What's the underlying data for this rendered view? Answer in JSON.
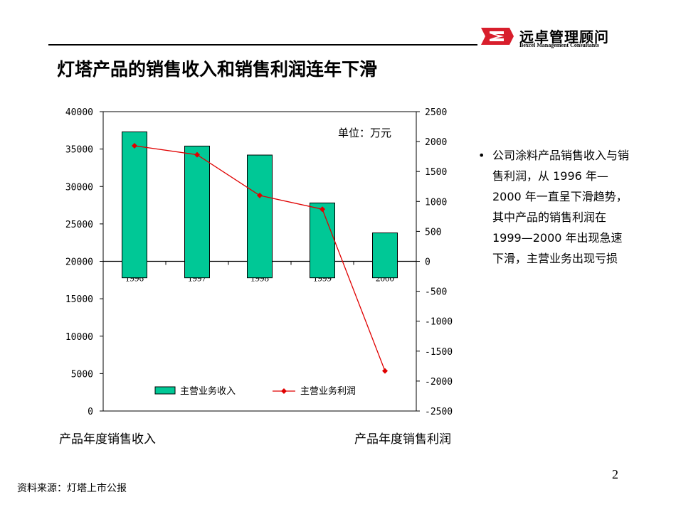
{
  "header": {
    "logo_cn": "远卓管理顾问",
    "logo_en": "Bexcel Management Consultants",
    "title": "灯塔产品的销售收入和销售利润连年下滑"
  },
  "chart_data": {
    "type": "bar+line",
    "unit_label": "单位：万元",
    "categories": [
      "1996",
      "1997",
      "1998",
      "1999",
      "2000"
    ],
    "series": [
      {
        "name": "主营业务收入",
        "type": "bar",
        "axis": "left",
        "values": [
          37300,
          35400,
          34200,
          27800,
          23800
        ],
        "color": "#00c896"
      },
      {
        "name": "主营业务利润",
        "type": "line",
        "axis": "right",
        "values": [
          1930,
          1780,
          1100,
          870,
          -1830
        ],
        "color": "#e00000"
      }
    ],
    "left_axis": {
      "min": 0,
      "max": 40000,
      "ticks": [
        "40000",
        "35000",
        "30000",
        "25000",
        "20000",
        "15000",
        "10000",
        "5000",
        "0"
      ],
      "bar_baseline": 17800
    },
    "right_axis": {
      "min": -2500,
      "max": 2500,
      "ticks": [
        "2500",
        "2000",
        "1500",
        "1000",
        "500",
        "0",
        "-500",
        "-1000",
        "-1500",
        "-2000",
        "-2500"
      ]
    },
    "left_caption": "产品年度销售收入",
    "right_caption": "产品年度销售利润"
  },
  "bullet": {
    "marker": "•",
    "text": "公司涂料产品销售收入与销售利润，从 1996 年— 2000 年一直呈下滑趋势，其中产品的销售利润在 1999—2000 年出现急速下滑，主营业务出现亏损"
  },
  "footer": {
    "page_number": "2",
    "source": "资料来源：灯塔上市公报"
  }
}
